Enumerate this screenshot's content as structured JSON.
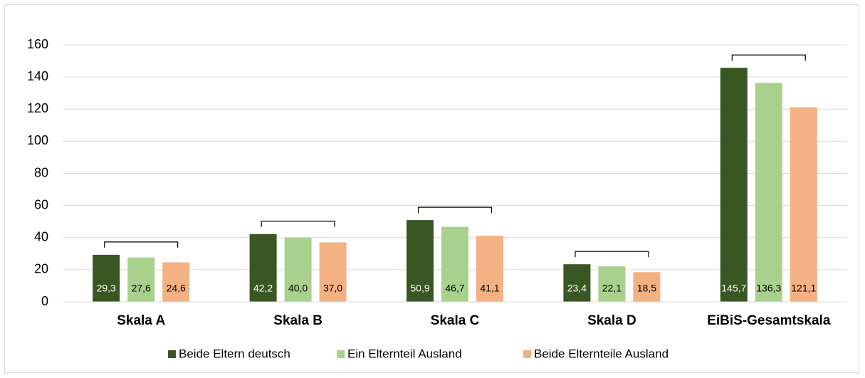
{
  "chart_data": {
    "type": "bar",
    "categories": [
      "Skala A",
      "Skala B",
      "Skala C",
      "Skala D",
      "EiBiS-Gesamtskala"
    ],
    "series": [
      {
        "name": "Beide Eltern deutsch",
        "color": "#385723",
        "values": [
          29.3,
          42.2,
          50.9,
          23.4,
          145.7
        ],
        "value_labels": [
          "29,3",
          "42,2",
          "50,9",
          "23,4",
          "145,7"
        ]
      },
      {
        "name": "Ein Elternteil Ausland",
        "color": "#a9d18e",
        "values": [
          27.6,
          40.0,
          46.7,
          22.1,
          136.3
        ],
        "value_labels": [
          "27,6",
          "40,0",
          "46,7",
          "22,1",
          "136,3"
        ]
      },
      {
        "name": "Beide Elternteile Ausland",
        "color": "#f4b183",
        "values": [
          24.6,
          37.0,
          41.1,
          18.5,
          121.1
        ],
        "value_labels": [
          "24,6",
          "37,0",
          "41,1",
          "18,5",
          "121,1"
        ]
      }
    ],
    "ylim": [
      0,
      160
    ],
    "yticks": [
      0,
      20,
      40,
      60,
      80,
      100,
      120,
      140,
      160
    ],
    "grid": true,
    "legend": "bottom"
  }
}
